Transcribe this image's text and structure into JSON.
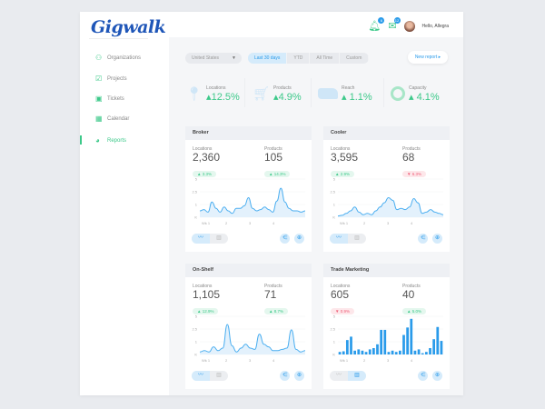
{
  "app": {
    "logo": "Gigwalk",
    "greeting": "Hello, Allegra",
    "notif_count": "6",
    "mail_count": "12"
  },
  "sidebar": {
    "items": [
      {
        "label": "Organizations",
        "icon": "users-icon"
      },
      {
        "label": "Projects",
        "icon": "clipboard-icon"
      },
      {
        "label": "Tickets",
        "icon": "ticket-icon"
      },
      {
        "label": "Calendar",
        "icon": "calendar-icon"
      },
      {
        "label": "Reports",
        "icon": "pie-chart-icon",
        "active": true
      }
    ]
  },
  "filters": {
    "country": "United States",
    "ranges": [
      "Last 30 days",
      "YTD",
      "All Time",
      "Custom"
    ],
    "active_range": "Last 30 days",
    "new_report": "New report"
  },
  "summary": [
    {
      "label": "Locations",
      "value": "12.5%",
      "icon": "map-pin-icon"
    },
    {
      "label": "Products",
      "value": "4.9%",
      "icon": "cart-icon"
    },
    {
      "label": "Reach",
      "value": "1.1%",
      "icon": "usa-map-icon"
    },
    {
      "label": "Capacity",
      "value": "4.1%",
      "icon": "donut-icon"
    }
  ],
  "colors": {
    "accent": "#2a9bea",
    "positive": "#3dc98a",
    "negative": "#f0607a"
  },
  "chart_data": [
    {
      "type": "area",
      "title": "Broker",
      "kpis": [
        {
          "label": "Locations",
          "value": "2,360",
          "change": "3.3%",
          "dir": "up"
        },
        {
          "label": "Products",
          "value": "105",
          "change": "14.3%",
          "dir": "up"
        }
      ],
      "y_ticks": [
        "5",
        "2.5",
        "1",
        "K"
      ],
      "x_ticks": [
        "Wk 1",
        "2",
        "3",
        "4"
      ],
      "values": [
        0.5,
        0.6,
        0.4,
        1.3,
        0.7,
        0.4,
        0.8,
        0.5,
        0.3,
        0.7,
        0.7,
        0.9,
        1.8,
        0.7,
        0.5,
        0.6,
        0.8,
        0.6,
        0.4,
        1.4,
        3.2,
        1.3,
        0.7,
        0.5,
        0.5,
        0.4,
        0.5
      ]
    },
    {
      "type": "area",
      "title": "Cooler",
      "kpis": [
        {
          "label": "Locations",
          "value": "3,595",
          "change": "2.9%",
          "dir": "up"
        },
        {
          "label": "Products",
          "value": "68",
          "change": "6.3%",
          "dir": "down"
        }
      ],
      "y_ticks": [
        "5",
        "2.5",
        "1",
        "K"
      ],
      "x_ticks": [
        "Wk 1",
        "2",
        "3",
        "4"
      ],
      "values": [
        0.1,
        0.15,
        0.3,
        0.5,
        0.8,
        0.4,
        0.2,
        0.3,
        0.2,
        0.5,
        0.8,
        1.2,
        1.8,
        1.5,
        0.6,
        0.7,
        0.6,
        0.8,
        1.7,
        1.2,
        0.3,
        0.4,
        0.6,
        0.4,
        0.3,
        0.2
      ]
    },
    {
      "type": "area",
      "title": "On-Shelf",
      "kpis": [
        {
          "label": "Locations",
          "value": "1,105",
          "change": "12.9%",
          "dir": "up"
        },
        {
          "label": "Products",
          "value": "71",
          "change": "8.7%",
          "dir": "up"
        }
      ],
      "y_ticks": [
        "5",
        "2.5",
        "1",
        "K"
      ],
      "x_ticks": [
        "Wk 1",
        "2",
        "3",
        "4"
      ],
      "values": [
        0.2,
        0.3,
        0.2,
        0.6,
        0.3,
        0.5,
        3.4,
        0.7,
        0.2,
        0.5,
        0.8,
        0.5,
        0.4,
        1.9,
        0.8,
        0.6,
        0.3,
        0.3,
        0.4,
        0.5,
        2.4,
        0.4,
        0.2,
        0.3
      ]
    },
    {
      "type": "bar",
      "title": "Trade Marketing",
      "kpis": [
        {
          "label": "Locations",
          "value": "605",
          "change": "0.9%",
          "dir": "down"
        },
        {
          "label": "Products",
          "value": "40",
          "change": "5.0%",
          "dir": "up"
        }
      ],
      "y_ticks": [
        "5",
        "2.5",
        "1",
        "K"
      ],
      "x_ticks": [
        "Wk 1",
        "2",
        "3",
        "4"
      ],
      "values": [
        0.2,
        0.25,
        1.2,
        1.6,
        0.3,
        0.4,
        0.3,
        0.2,
        0.4,
        0.5,
        0.8,
        2.4,
        2.4,
        0.2,
        0.3,
        0.2,
        0.3,
        1.8,
        2.8,
        4.5,
        0.3,
        0.4,
        0.1,
        0.2,
        0.5,
        1.3,
        2.9,
        1.1
      ]
    }
  ]
}
